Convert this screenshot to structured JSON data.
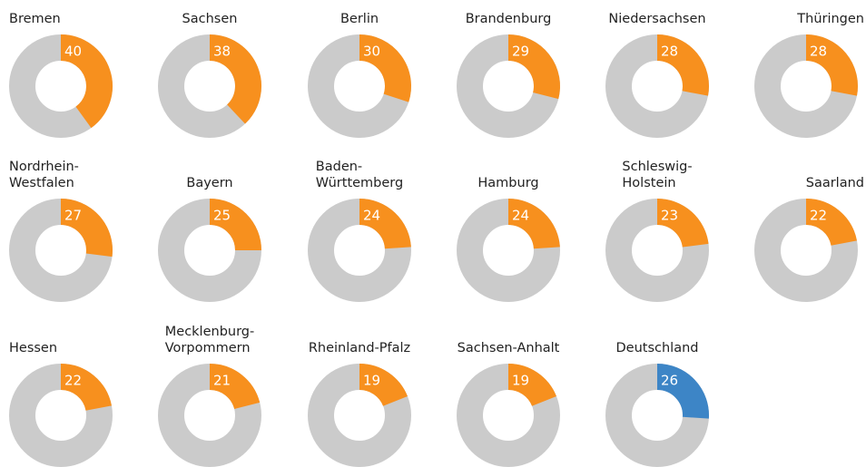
{
  "chart_data": {
    "type": "donut",
    "categories": [
      "Bremen",
      "Sachsen",
      "Berlin",
      "Brandenburg",
      "Niedersachsen",
      "Thüringen",
      "Nordrhein-\nWestfalen",
      "Bayern",
      "Baden-\nWürttemberg",
      "Hamburg",
      "Schleswig-\nHolstein",
      "Saarland",
      "Hessen",
      "Mecklenburg-\nVorpommern",
      "Rheinland-Pfalz",
      "Sachsen-Anhalt",
      "Deutschland"
    ],
    "values": [
      40,
      38,
      30,
      29,
      28,
      28,
      27,
      25,
      24,
      24,
      23,
      22,
      22,
      21,
      19,
      19,
      26
    ],
    "colors": [
      "#f7901e",
      "#f7901e",
      "#f7901e",
      "#f7901e",
      "#f7901e",
      "#f7901e",
      "#f7901e",
      "#f7901e",
      "#f7901e",
      "#f7901e",
      "#f7901e",
      "#f7901e",
      "#f7901e",
      "#f7901e",
      "#f7901e",
      "#f7901e",
      "#3d85c6"
    ],
    "background_color": "#cbcbcb",
    "ylim": [
      0,
      100
    ]
  }
}
